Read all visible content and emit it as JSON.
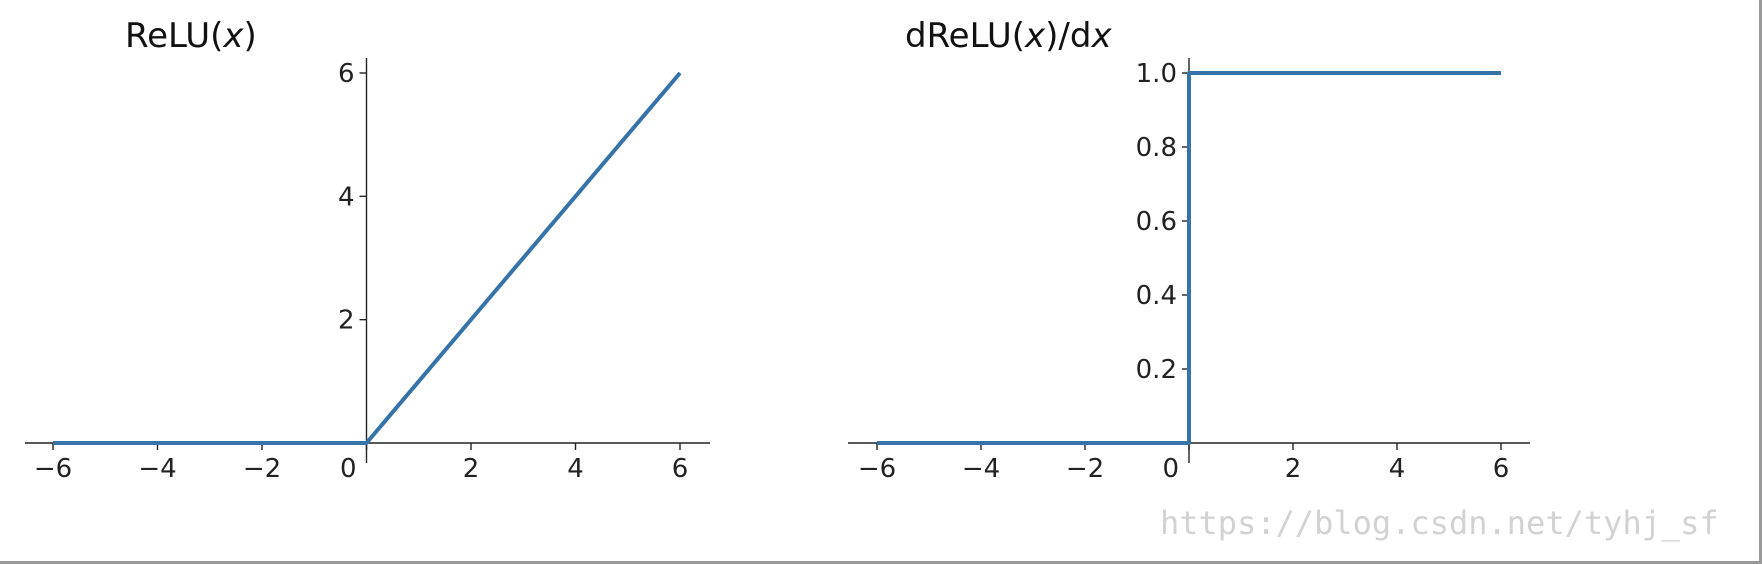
{
  "chart_data": [
    {
      "type": "line",
      "title": "ReLU(x)",
      "title_parts": [
        "ReLU(",
        "x",
        ")"
      ],
      "xlabel": "",
      "ylabel": "",
      "xlim": [
        -6.5,
        6.5
      ],
      "ylim": [
        0,
        6.2
      ],
      "x_ticks": [
        -6,
        -4,
        -2,
        0,
        2,
        4,
        6
      ],
      "x_tick_labels": [
        "−6",
        "−4",
        "−2",
        "0",
        "2",
        "4",
        "6"
      ],
      "y_ticks": [
        2,
        4,
        6
      ],
      "y_tick_labels": [
        "2",
        "4",
        "6"
      ],
      "spines": "centered at origin",
      "grid": false,
      "series": [
        {
          "x": [
            -6,
            0,
            6
          ],
          "y": [
            0,
            0,
            6
          ],
          "color": "#3573a8"
        }
      ]
    },
    {
      "type": "line",
      "title": "dReLU(x)/dx",
      "title_parts": [
        "dReLU(",
        "x",
        ")/d",
        "x"
      ],
      "xlabel": "",
      "ylabel": "",
      "xlim": [
        -6.5,
        6.5
      ],
      "ylim": [
        0,
        1.05
      ],
      "x_ticks": [
        -6,
        -4,
        -2,
        0,
        2,
        4,
        6
      ],
      "x_tick_labels": [
        "−6",
        "−4",
        "−2",
        "0",
        "2",
        "4",
        "6"
      ],
      "y_ticks": [
        0.2,
        0.4,
        0.6,
        0.8,
        1.0
      ],
      "y_tick_labels": [
        "0.2",
        "0.4",
        "0.6",
        "0.8",
        "1.0"
      ],
      "spines": "centered at origin",
      "grid": false,
      "series": [
        {
          "x": [
            -6,
            0,
            0,
            6
          ],
          "y": [
            0,
            0,
            1,
            1
          ],
          "color": "#3573a8"
        }
      ]
    }
  ],
  "watermark": "https://blog.csdn.net/tyhj_sf"
}
